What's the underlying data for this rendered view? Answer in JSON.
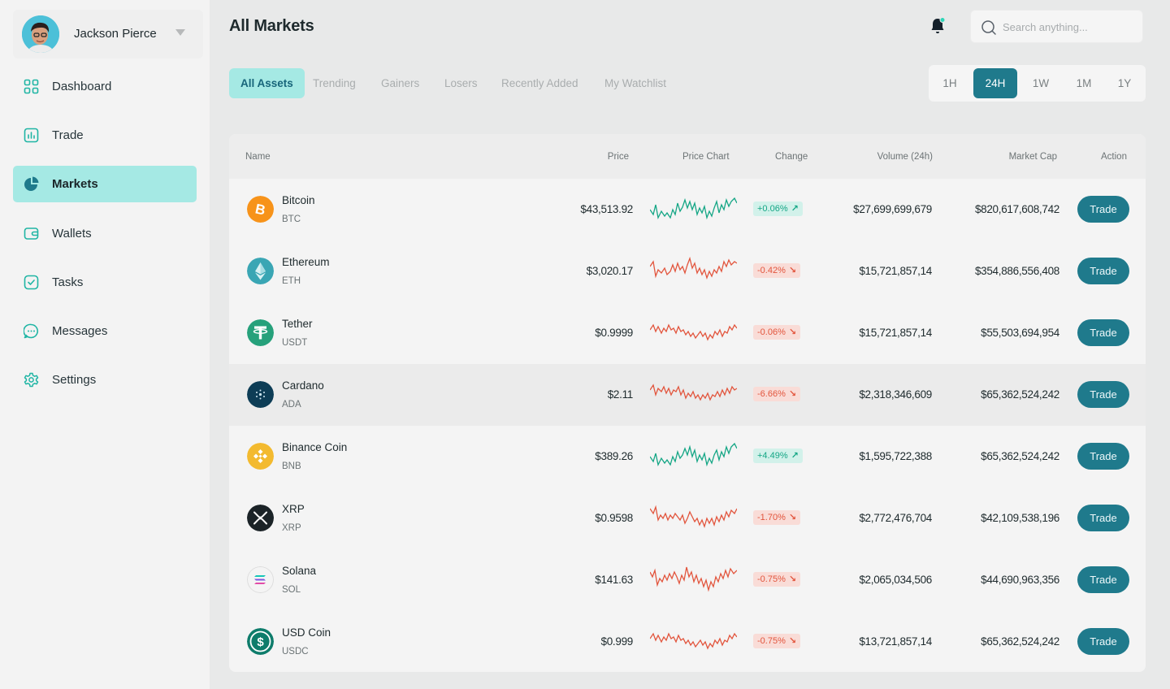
{
  "user": {
    "name": "Jackson Pierce"
  },
  "sidebar": {
    "items": [
      {
        "label": "Dashboard",
        "icon": "grid-icon",
        "active": false
      },
      {
        "label": "Trade",
        "icon": "chart-icon",
        "active": false
      },
      {
        "label": "Markets",
        "icon": "pie-chart-icon",
        "active": true
      },
      {
        "label": "Wallets",
        "icon": "wallet-icon",
        "active": false
      },
      {
        "label": "Tasks",
        "icon": "checkbox-icon",
        "active": false
      },
      {
        "label": "Messages",
        "icon": "message-icon",
        "active": false
      },
      {
        "label": "Settings",
        "icon": "gear-icon",
        "active": false
      }
    ]
  },
  "header": {
    "title": "All Markets",
    "search_placeholder": "Search anything..."
  },
  "tabs": [
    "All Assets",
    "Trending",
    "Gainers",
    "Losers",
    "Recently Added",
    "My Watchlist"
  ],
  "active_tab": "All Assets",
  "periods": [
    "1H",
    "24H",
    "1W",
    "1M",
    "1Y"
  ],
  "active_period": "24H",
  "table": {
    "columns": {
      "name": "Name",
      "price": "Price",
      "chart": "Price Chart",
      "change": "Change",
      "volume": "Volume (24h)",
      "market_cap": "Market Cap",
      "action": "Action"
    },
    "action_label": "Trade",
    "rows": [
      {
        "name": "Bitcoin",
        "symbol": "BTC",
        "price": "$43,513.92",
        "change": "+0.06%",
        "trend": "up",
        "volume": "$27,699,699,679",
        "market_cap": "$820,617,608,742"
      },
      {
        "name": "Ethereum",
        "symbol": "ETH",
        "price": "$3,020.17",
        "change": "-0.42%",
        "trend": "down",
        "volume": "$15,721,857,14",
        "market_cap": "$354,886,556,408"
      },
      {
        "name": "Tether",
        "symbol": "USDT",
        "price": "$0.9999",
        "change": "-0.06%",
        "trend": "down",
        "volume": "$15,721,857,14",
        "market_cap": "$55,503,694,954"
      },
      {
        "name": "Cardano",
        "symbol": "ADA",
        "price": "$2.11",
        "change": "-6.66%",
        "trend": "down",
        "volume": "$2,318,346,609",
        "market_cap": "$65,362,524,242"
      },
      {
        "name": "Binance Coin",
        "symbol": "BNB",
        "price": "$389.26",
        "change": "+4.49%",
        "trend": "up",
        "volume": "$1,595,722,388",
        "market_cap": "$65,362,524,242"
      },
      {
        "name": "XRP",
        "symbol": "XRP",
        "price": "$0.9598",
        "change": "-1.70%",
        "trend": "down",
        "volume": "$2,772,476,704",
        "market_cap": "$42,109,538,196"
      },
      {
        "name": "Solana",
        "symbol": "SOL",
        "price": "$141.63",
        "change": "-0.75%",
        "trend": "down",
        "volume": "$2,065,034,506",
        "market_cap": "$44,690,963,356"
      },
      {
        "name": "USD Coin",
        "symbol": "USDC",
        "price": "$0.999",
        "change": "-0.75%",
        "trend": "down",
        "volume": "$13,721,857,14",
        "market_cap": "$65,362,524,242"
      }
    ]
  },
  "colors": {
    "accent": "#1f7a8c",
    "active_bg": "#a5e9e4",
    "up": "#14a685",
    "down": "#e2553d"
  }
}
